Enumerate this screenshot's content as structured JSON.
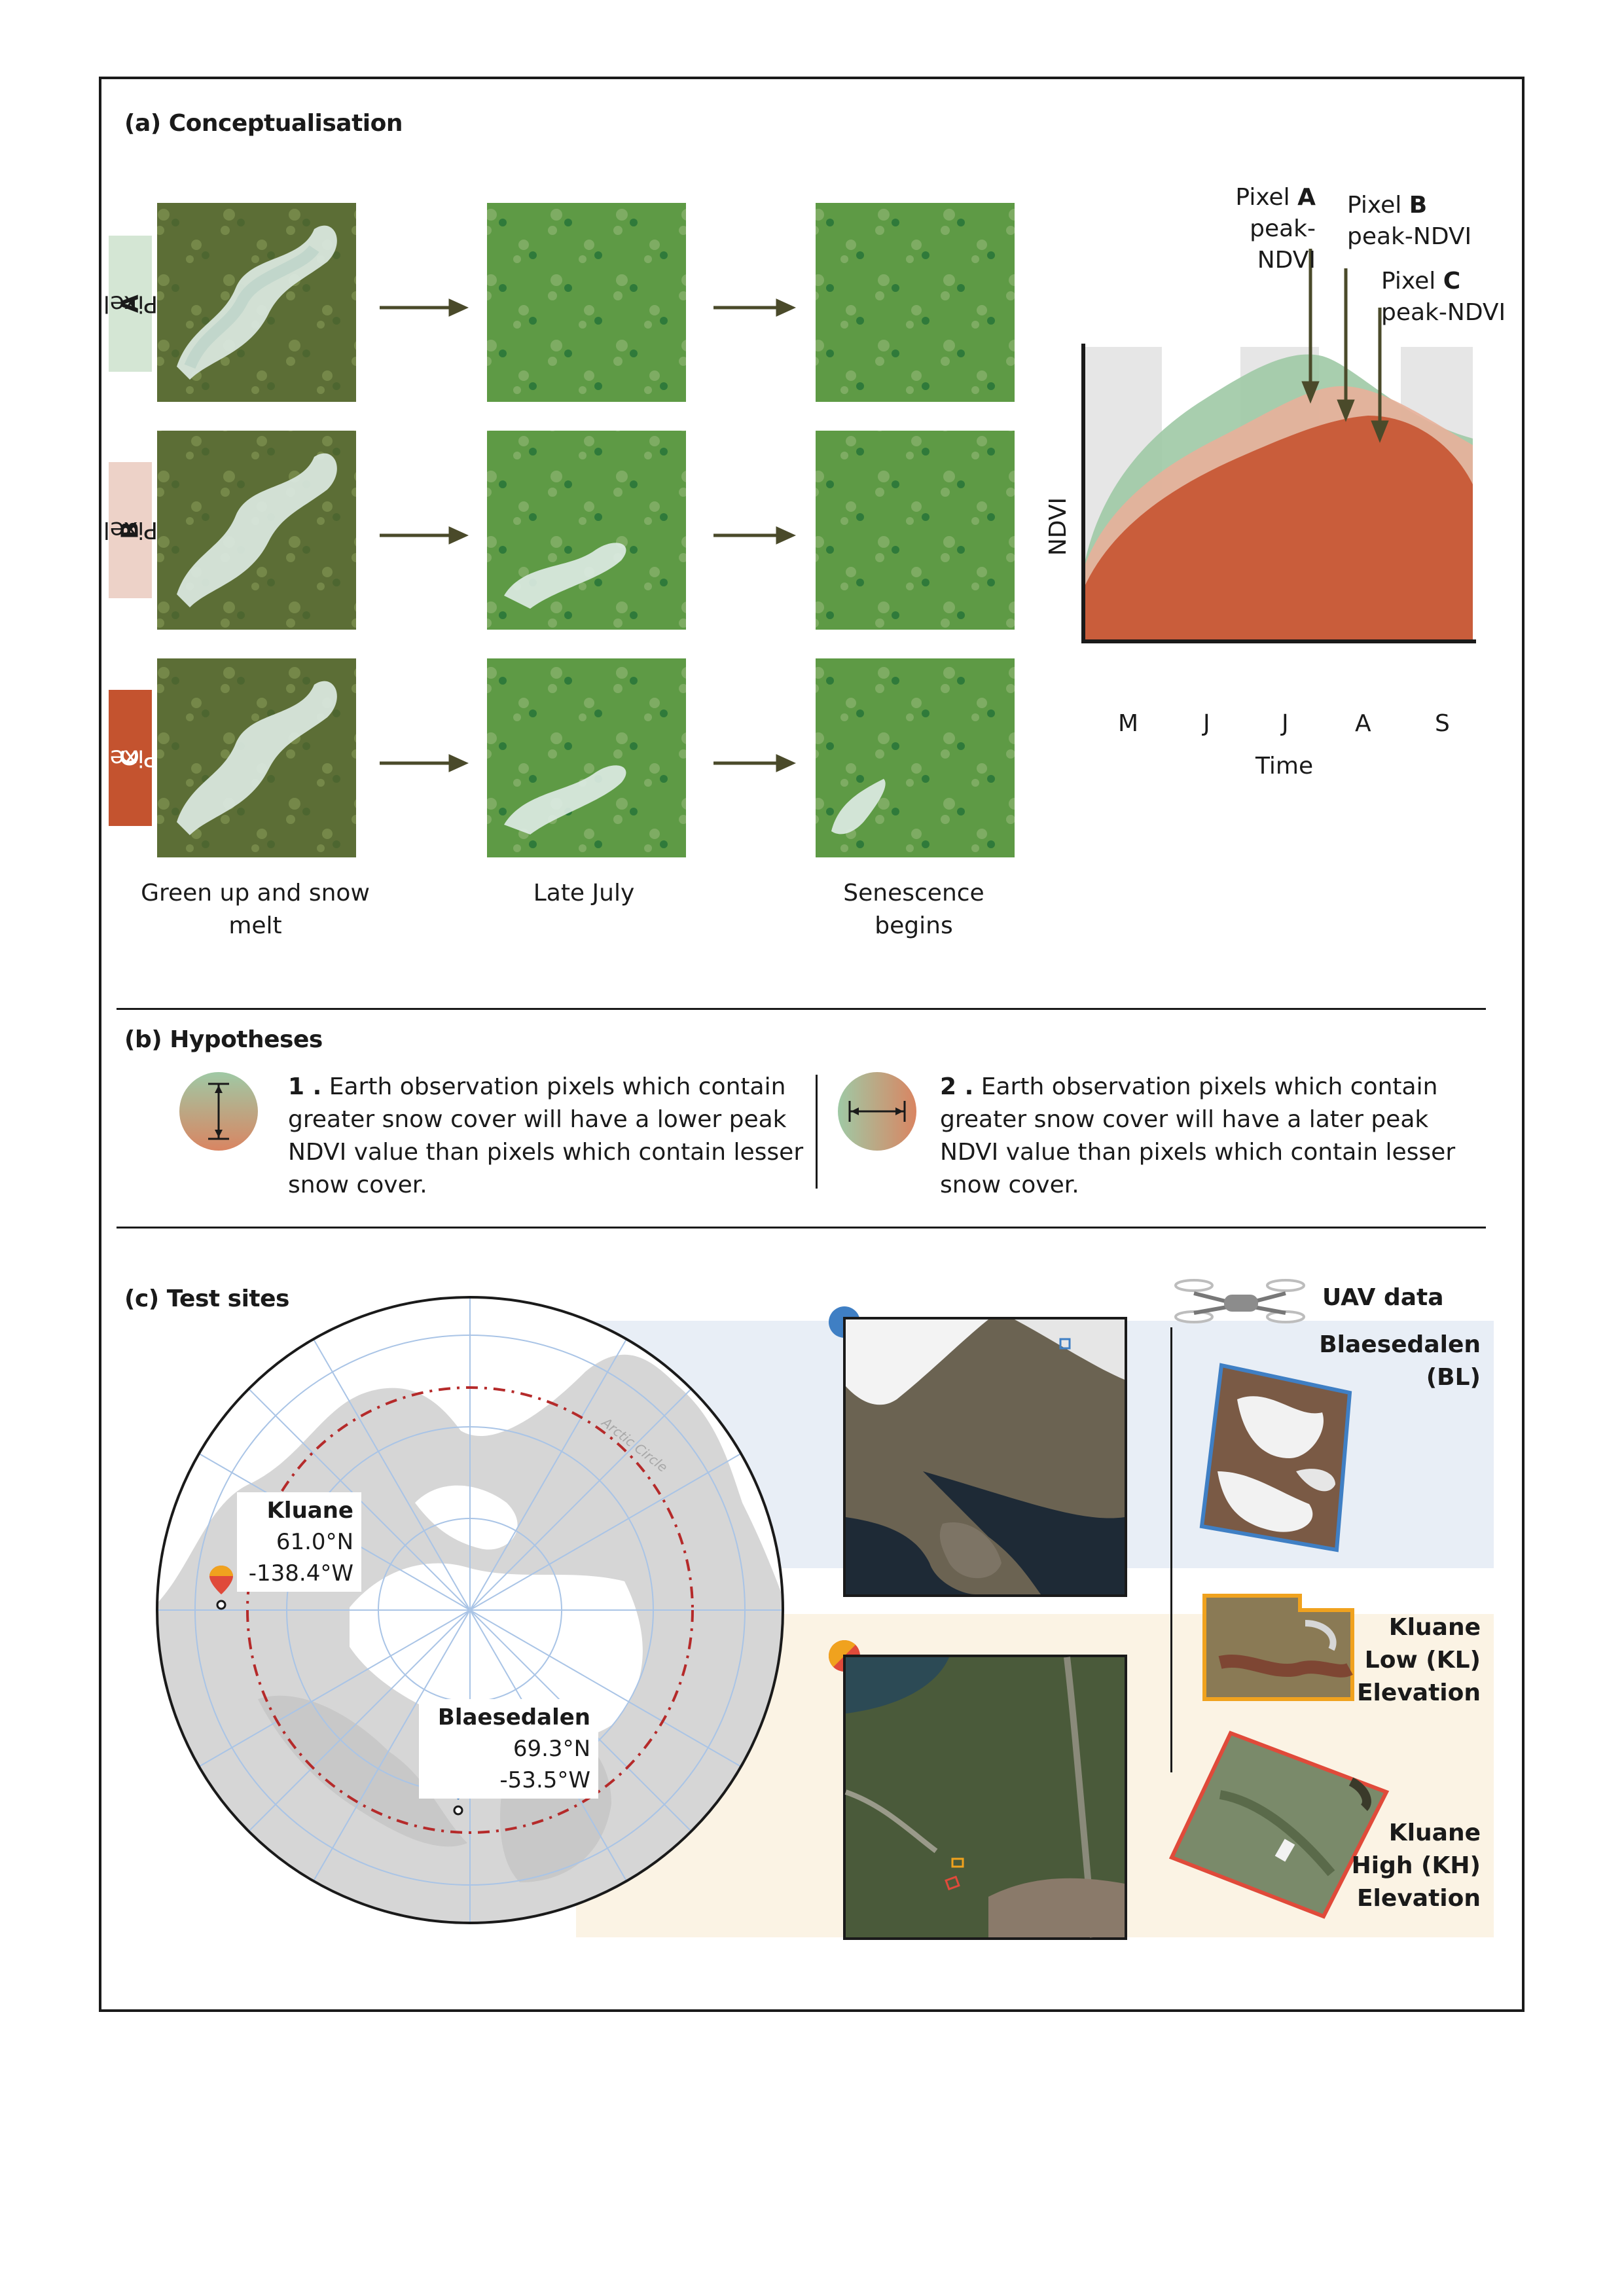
{
  "panel_a": {
    "title": "(a) Conceptualisation",
    "rows": [
      {
        "prefix": "Pixel ",
        "letter": "A",
        "color": "#d4e6d4"
      },
      {
        "prefix": "Pixel ",
        "letter": "B",
        "color": "#edd2c8"
      },
      {
        "prefix": "Pixel ",
        "letter": "C",
        "color": "#c4532f"
      }
    ],
    "captions": [
      "Green up and snow melt",
      "Late July",
      "Senescence begins"
    ],
    "chart": {
      "ylabel": "NDVI",
      "xlabel": "Time",
      "months": [
        "M",
        "J",
        "J",
        "A",
        "S"
      ],
      "peaks": [
        {
          "prefix": "Pixel ",
          "letter": "A",
          "suffix": "peak-NDVI"
        },
        {
          "prefix": "Pixel ",
          "letter": "B",
          "suffix": "peak-NDVI"
        },
        {
          "prefix": "Pixel ",
          "letter": "C",
          "suffix": "peak-NDVI"
        }
      ]
    }
  },
  "panel_b": {
    "title": "(b) Hypotheses",
    "h1_number": "1 .",
    "h1_text": "Earth observation pixels which contain greater snow cover will have a lower peak NDVI value than pixels which contain lesser snow cover.",
    "h2_number": "2 .",
    "h2_text": "Earth observation pixels which contain greater snow cover will have a later peak NDVI value than pixels which contain lesser snow cover."
  },
  "panel_c": {
    "title": "(c) Test sites",
    "map_arc_label": "Arctic Circle",
    "kluane": {
      "name": "Kluane",
      "lat": "61.0°N",
      "lon": "-138.4°W"
    },
    "blaesedalen": {
      "name": "Blaesedalen",
      "lat": "69.3°N",
      "lon": "-53.5°W"
    },
    "uav_title": "UAV data",
    "uav_sites": [
      {
        "line1": "Blaesedalen",
        "line2": "(BL)",
        "color": "#3f7fc4"
      },
      {
        "line1": "Kluane",
        "line2": "Low (KL)",
        "line3": "Elevation",
        "color": "#f0a21e"
      },
      {
        "line1": "Kluane",
        "line2": "High (KH)",
        "line3": "Elevation",
        "color": "#e04a3a"
      }
    ]
  },
  "colors": {
    "pixel_a": "#9fc9a5",
    "pixel_b": "#e8b09a",
    "pixel_c": "#c95d3b",
    "arrow": "#4a4a2a",
    "blue_band": "#e8eef6",
    "tan_band": "#fbf3e4"
  }
}
